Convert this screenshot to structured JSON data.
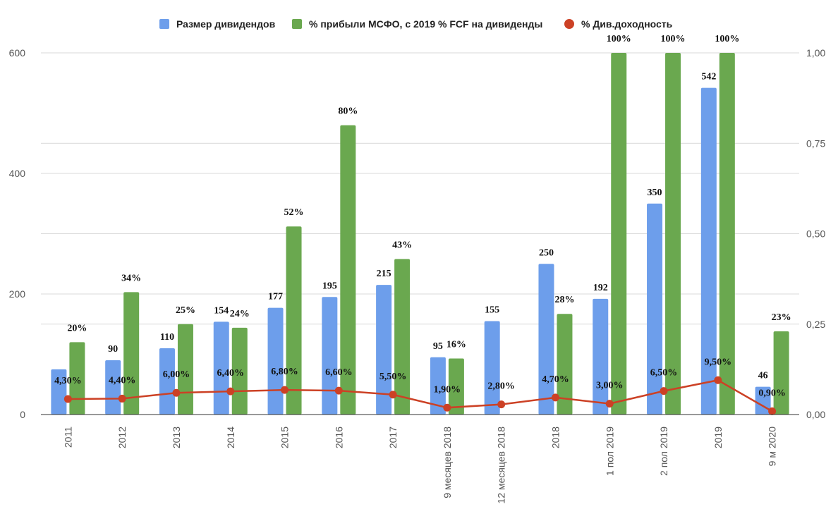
{
  "chart_data": {
    "type": "bar",
    "title": "",
    "categories": [
      "2011",
      "2012",
      "2013",
      "2014",
      "2015",
      "2016",
      "2017",
      "9 месяцев 2018",
      "12 месяцев 2018",
      "2018",
      "1 пол 2019",
      "2 пол 2019",
      "2019",
      "9 м 2020"
    ],
    "series": [
      {
        "name": "Размер дивидендов",
        "color": "#6d9eeb",
        "axis": "left",
        "kind": "bar",
        "values": [
          75,
          90,
          110,
          154,
          177,
          195,
          215,
          95,
          155,
          250,
          192,
          350,
          542,
          46
        ],
        "labels": [
          "",
          "90",
          "110",
          "154",
          "177",
          "195",
          "215",
          "95",
          "155",
          "250",
          "192",
          "350",
          "542",
          "46"
        ]
      },
      {
        "name": "% прибыли МСФО, с 2019 % FCF на дивиденды",
        "color": "#6aa84f",
        "axis": "left",
        "kind": "bar",
        "values": [
          120,
          203,
          150,
          144,
          312,
          480,
          258,
          null,
          null,
          167,
          600,
          600,
          600,
          138
        ],
        "labels": [
          "20%",
          "34%",
          "25%",
          "24%",
          "52%",
          "80%",
          "43%",
          "16%",
          "",
          "28%",
          "100%",
          "100%",
          "100%",
          "23%"
        ],
        "extra_values": {
          "7": 93
        }
      },
      {
        "name": "% Див.доходность",
        "color": "#cc4125",
        "axis": "right",
        "kind": "line",
        "values": [
          0.043,
          0.044,
          0.06,
          0.064,
          0.068,
          0.066,
          0.055,
          0.019,
          0.028,
          0.047,
          0.03,
          0.065,
          0.095,
          0.009
        ],
        "labels": [
          "4,30%",
          "4,40%",
          "6,00%",
          "6,40%",
          "6,80%",
          "6,60%",
          "5,50%",
          "1,90%",
          "2,80%",
          "4,70%",
          "3,00%",
          "6,50%",
          "9,50%",
          "0,90%"
        ]
      }
    ],
    "y_left": {
      "range": [
        0,
        600
      ],
      "ticks": [
        "0",
        "200",
        "400",
        "600"
      ],
      "tick_values": [
        0,
        200,
        400,
        600
      ]
    },
    "y_right": {
      "range": [
        0,
        1
      ],
      "ticks": [
        "0,00",
        "0,25",
        "0,50",
        "0,75",
        "1,00"
      ],
      "tick_values": [
        0,
        0.25,
        0.5,
        0.75,
        1
      ]
    },
    "grid": true,
    "legend_position": "top"
  }
}
